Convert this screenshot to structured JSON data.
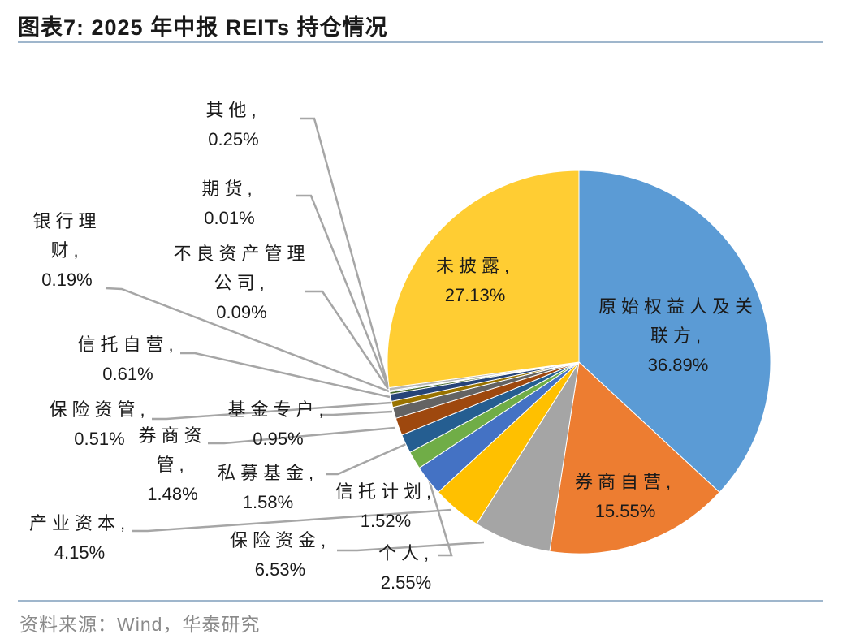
{
  "header": {
    "title": "图表7:  2025 年中报 REITs 持仓情况"
  },
  "footer": {
    "source": "资料来源：Wind，华泰研究"
  },
  "chart_data": {
    "type": "pie",
    "start_angle_deg": 0,
    "direction": "clockwise",
    "legend": "none",
    "slices": [
      {
        "name": "原始权益人及关联方",
        "value": 36.89,
        "label": "36.89%",
        "color": "#5B9BD5"
      },
      {
        "name": "券商自营",
        "value": 15.55,
        "label": "15.55%",
        "color": "#ED7D31"
      },
      {
        "name": "保险资金",
        "value": 6.53,
        "label": "6.53%",
        "color": "#A5A5A5"
      },
      {
        "name": "产业资本",
        "value": 4.15,
        "label": "4.15%",
        "color": "#FFC000"
      },
      {
        "name": "个人",
        "value": 2.55,
        "label": "2.55%",
        "color": "#4472C4"
      },
      {
        "name": "信托计划",
        "value": 1.52,
        "label": "1.52%",
        "color": "#70AD47"
      },
      {
        "name": "私募基金",
        "value": 1.58,
        "label": "1.58%",
        "color": "#255E91"
      },
      {
        "name": "券商资管",
        "value": 1.48,
        "label": "1.48%",
        "color": "#9E480E"
      },
      {
        "name": "基金专户",
        "value": 0.95,
        "label": "0.95%",
        "color": "#636363"
      },
      {
        "name": "保险资管",
        "value": 0.51,
        "label": "0.51%",
        "color": "#997300"
      },
      {
        "name": "信托自营",
        "value": 0.61,
        "label": "0.61%",
        "color": "#264478"
      },
      {
        "name": "银行理财",
        "value": 0.19,
        "label": "0.19%",
        "color": "#43682B"
      },
      {
        "name": "不良资产管理公司",
        "value": 0.09,
        "label": "0.09%",
        "color": "#7CAFDD"
      },
      {
        "name": "期货",
        "value": 0.01,
        "label": "0.01%",
        "color": "#F1975A"
      },
      {
        "name": "其他",
        "value": 0.25,
        "label": "0.25%",
        "color": "#B7B7B7"
      },
      {
        "name": "未披露",
        "value": 27.13,
        "label": "27.13%",
        "color": "#FFCD33"
      }
    ]
  }
}
